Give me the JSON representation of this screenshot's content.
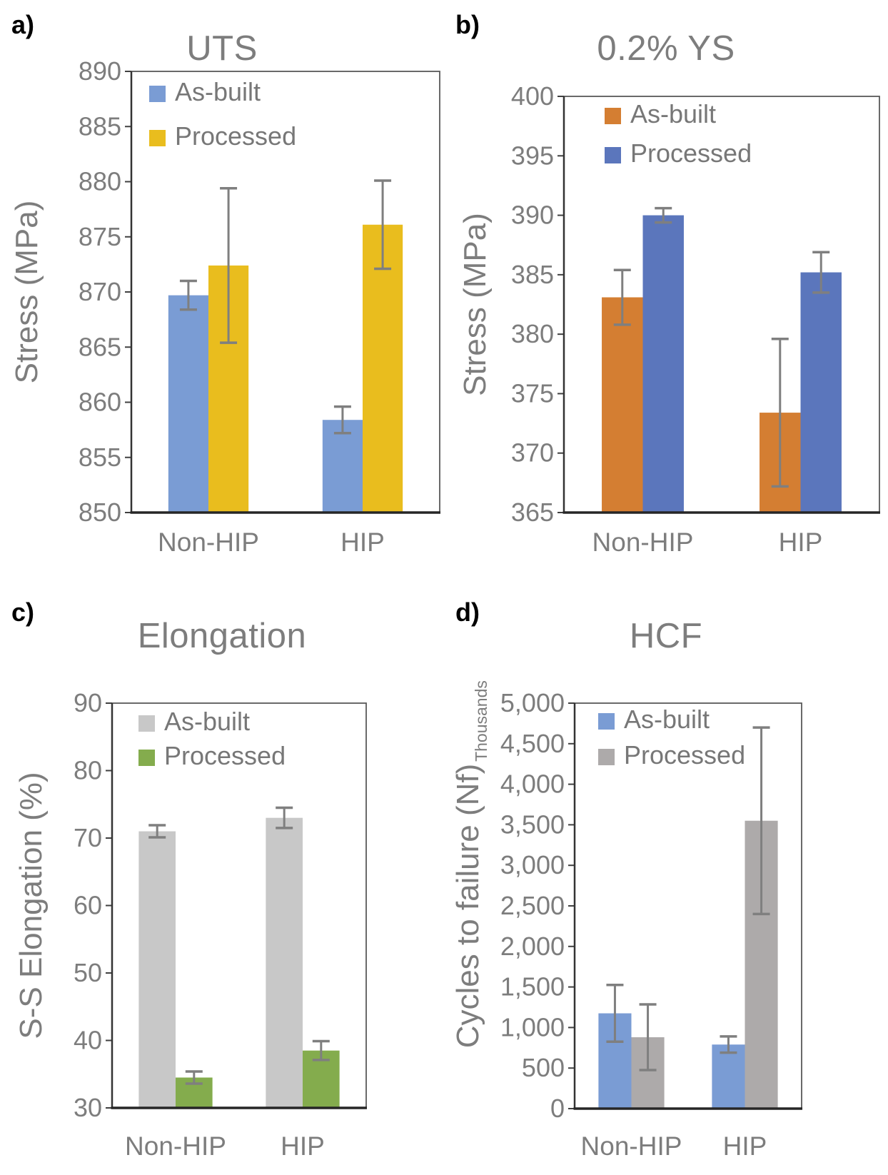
{
  "figure": {
    "background": "#ffffff",
    "text_color": "#7D7D7D",
    "axis_box_color": "#595959",
    "axis_line_color": "#262626",
    "error_bar_color": "#7F7F7F"
  },
  "chart_data": [
    {
      "panel_label": "a)",
      "type": "bar",
      "title": "UTS",
      "ylabel": "Stress (MPa)",
      "categories": [
        "Non-HIP",
        "HIP"
      ],
      "ylim": [
        850,
        890
      ],
      "ystep": 5,
      "grid": false,
      "legend_position": "top-left",
      "series": [
        {
          "name": "As-built",
          "color": "#7A9CD4",
          "values": [
            869.7,
            858.4
          ],
          "errors": [
            1.3,
            1.2
          ]
        },
        {
          "name": "Processed",
          "color": "#E9BD1E",
          "values": [
            872.4,
            876.1
          ],
          "errors": [
            7.0,
            4.0
          ]
        }
      ]
    },
    {
      "panel_label": "b)",
      "type": "bar",
      "title": "0.2% YS",
      "ylabel": "Stress (MPa)",
      "categories": [
        "Non-HIP",
        "HIP"
      ],
      "ylim": [
        365,
        400
      ],
      "ystep": 5,
      "grid": false,
      "legend_position": "top-left",
      "series": [
        {
          "name": "As-built",
          "color": "#D47E32",
          "values": [
            383.1,
            373.4
          ],
          "errors": [
            2.3,
            6.2
          ]
        },
        {
          "name": "Processed",
          "color": "#5B76BC",
          "values": [
            390.0,
            385.2
          ],
          "errors": [
            0.6,
            1.7
          ]
        }
      ]
    },
    {
      "panel_label": "c)",
      "type": "bar",
      "title": "Elongation",
      "ylabel": "S-S Elongation (%)",
      "categories": [
        "Non-HIP",
        "HIP"
      ],
      "ylim": [
        30,
        90
      ],
      "ystep": 10,
      "grid": false,
      "legend_position": "top-left",
      "series": [
        {
          "name": "As-built",
          "color": "#C8C8C8",
          "values": [
            71.0,
            73.0
          ],
          "errors": [
            0.9,
            1.5
          ]
        },
        {
          "name": "Processed",
          "color": "#84AC4D",
          "values": [
            34.5,
            38.5
          ],
          "errors": [
            0.9,
            1.4
          ]
        }
      ]
    },
    {
      "panel_label": "d)",
      "type": "bar",
      "title": "HCF",
      "ylabel": "Cycles to failure (Nf)",
      "y_units_note": "Thousands",
      "categories": [
        "Non-HIP",
        "HIP"
      ],
      "ylim": [
        0,
        5000
      ],
      "ystep": 500,
      "thousands_separator": true,
      "grid": false,
      "legend_position": "top-left",
      "series": [
        {
          "name": "As-built",
          "color": "#7A9CD4",
          "values": [
            1175,
            790
          ],
          "errors": [
            350,
            100
          ]
        },
        {
          "name": "Processed",
          "color": "#ADAAAA",
          "values": [
            880,
            3550
          ],
          "errors": [
            405,
            1150
          ]
        }
      ]
    }
  ]
}
